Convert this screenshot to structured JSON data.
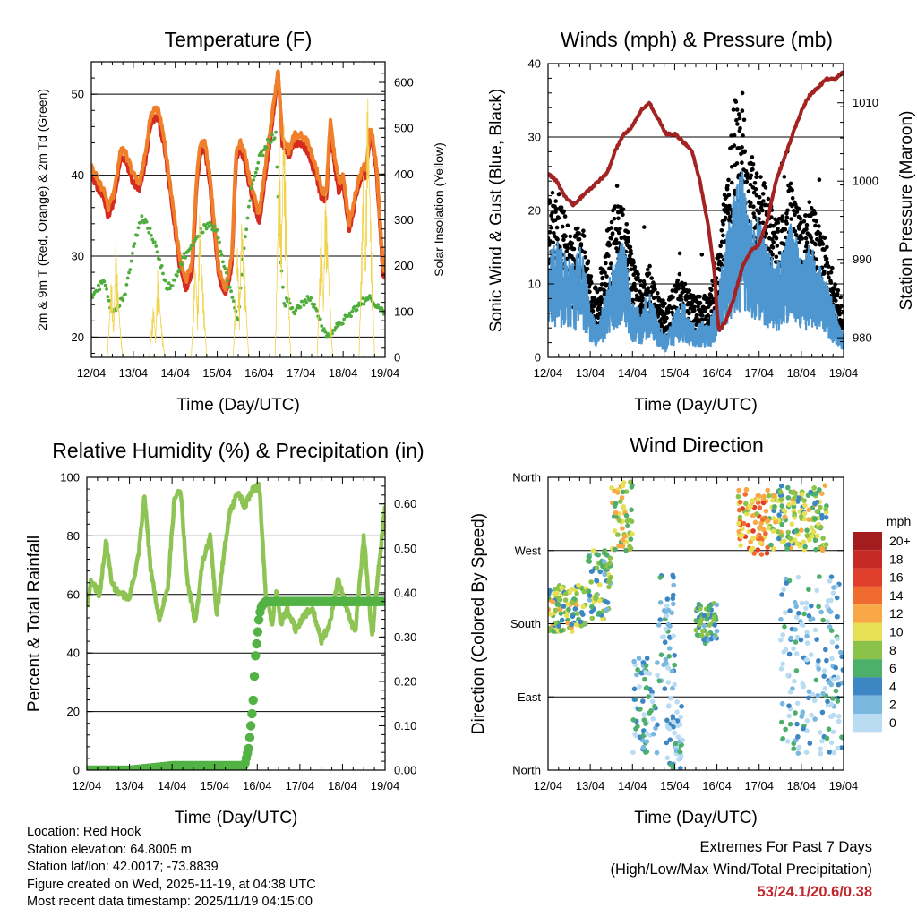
{
  "footer": {
    "location": "Location: Red Hook",
    "elevation": "Station elevation: 64.8005 m",
    "latlon": "Station lat/lon: 42.0017; -73.8839",
    "created": "Figure created on Wed, 2025-11-19, at 04:38 UTC",
    "recent": "Most recent data timestamp: 2025/11/19 04:15:00",
    "extremes_title": "Extremes For Past 7 Days",
    "extremes_sub": "(High/Low/Max Wind/Total Precipitation)",
    "extremes_values": "53/24.1/20.6/0.38"
  },
  "chart_data": [
    {
      "type": "line",
      "title": "Temperature (F)",
      "xlabel": "Time (Day/UTC)",
      "ylabel": "2m & 9m T (Red, Orange) & 2m Td (Green)",
      "y2label": "Solar Insolation (Yellow)",
      "xticks": [
        "12/04",
        "13/04",
        "14/04",
        "15/04",
        "16/04",
        "17/04",
        "18/04",
        "19/04"
      ],
      "ylim": [
        17.5,
        54
      ],
      "yticks": [
        20,
        30,
        40,
        50
      ],
      "y2lim": [
        0,
        645
      ],
      "y2ticks": [
        0,
        100,
        200,
        300,
        400,
        500,
        600
      ],
      "series": [
        {
          "name": "2m T",
          "color": "#d42a1f",
          "x": [
            0,
            0.1,
            0.3,
            0.4,
            0.55,
            0.7,
            0.8,
            1.0,
            1.15,
            1.3,
            1.4,
            1.5,
            1.6,
            1.75,
            1.9,
            2.0,
            2.1,
            2.25,
            2.4,
            2.5,
            2.6,
            2.7,
            2.8,
            2.95,
            3.05,
            3.2,
            3.35,
            3.45,
            3.55,
            3.65,
            3.75,
            3.9,
            4.0,
            4.1,
            4.2,
            4.3,
            4.4,
            4.45,
            4.55,
            4.7,
            4.85,
            5.0,
            5.15,
            5.35,
            5.5,
            5.6,
            5.7,
            5.8,
            5.9,
            6.0,
            6.15,
            6.3,
            6.45,
            6.55,
            6.65,
            6.7,
            6.8,
            6.9,
            6.95,
            7.0
          ],
          "y": [
            40,
            39,
            37,
            35,
            37,
            42,
            42,
            39,
            38,
            42,
            46,
            47,
            47,
            43,
            37,
            33,
            29,
            26,
            28,
            38,
            43,
            43,
            40,
            32,
            27,
            25,
            29,
            42,
            43,
            42,
            39,
            36,
            34,
            38,
            42,
            46,
            50,
            53,
            44,
            42,
            44,
            44,
            43,
            40,
            37,
            37,
            46,
            41,
            38,
            39,
            33,
            37,
            40,
            40,
            45,
            44,
            40,
            32,
            28,
            27
          ]
        },
        {
          "name": "9m T",
          "color": "#f07f2a",
          "x": [
            0,
            0.1,
            0.3,
            0.4,
            0.55,
            0.7,
            0.8,
            1.0,
            1.15,
            1.3,
            1.4,
            1.5,
            1.6,
            1.75,
            1.9,
            2.0,
            2.1,
            2.25,
            2.4,
            2.5,
            2.6,
            2.7,
            2.8,
            2.95,
            3.05,
            3.2,
            3.35,
            3.45,
            3.55,
            3.65,
            3.75,
            3.9,
            4.0,
            4.1,
            4.2,
            4.3,
            4.4,
            4.45,
            4.55,
            4.7,
            4.85,
            5.0,
            5.15,
            5.35,
            5.5,
            5.6,
            5.7,
            5.8,
            5.9,
            6.0,
            6.15,
            6.3,
            6.45,
            6.55,
            6.65,
            6.7,
            6.8,
            6.9,
            6.95,
            7.0
          ],
          "y": [
            41,
            40,
            38,
            36,
            38,
            43,
            43,
            40,
            39,
            43,
            47,
            48,
            48,
            44,
            38,
            34,
            30,
            27,
            29,
            39,
            44,
            44,
            41,
            33,
            28,
            26,
            30,
            43,
            44,
            43,
            40,
            37,
            35,
            39,
            43,
            47,
            51,
            53,
            45,
            43,
            45,
            45,
            44,
            41,
            38,
            38,
            47,
            42,
            39,
            40,
            34,
            38,
            41,
            41,
            46,
            45,
            41,
            33,
            29,
            28
          ]
        },
        {
          "name": "2m Td",
          "color": "#4fad3e",
          "x": [
            0,
            0.3,
            0.5,
            0.8,
            1.0,
            1.2,
            1.4,
            1.6,
            1.8,
            2.0,
            2.2,
            2.4,
            2.6,
            2.8,
            3.0,
            3.2,
            3.4,
            3.5,
            3.6,
            3.8,
            4.0,
            4.2,
            4.4,
            4.5,
            4.6,
            4.7,
            4.8,
            5.0,
            5.2,
            5.4,
            5.6,
            5.8,
            6.0,
            6.2,
            6.4,
            6.6,
            6.8,
            7.0
          ],
          "y": [
            25,
            27,
            23,
            25,
            31,
            35,
            33,
            30,
            26,
            27,
            30,
            31,
            33,
            34,
            33,
            28,
            24,
            22,
            29,
            38,
            42,
            44,
            45,
            30,
            24,
            25,
            23,
            24,
            25,
            23,
            20,
            21,
            22,
            23,
            24,
            25,
            24,
            23
          ]
        },
        {
          "name": "Solar Insolation",
          "color": "#f2d34c",
          "axis": "y2",
          "x": [
            0,
            0.38,
            0.48,
            0.53,
            0.58,
            0.68,
            0.75,
            1.38,
            1.48,
            1.53,
            1.58,
            1.68,
            1.75,
            2.38,
            2.48,
            2.53,
            2.58,
            2.68,
            2.75,
            3.38,
            3.48,
            3.53,
            3.58,
            3.68,
            3.75,
            4.38,
            4.48,
            4.53,
            4.58,
            4.68,
            4.75,
            5.38,
            5.48,
            5.53,
            5.58,
            5.68,
            5.75,
            6.38,
            6.48,
            6.53,
            6.58,
            6.68,
            6.75,
            7.0
          ],
          "y": [
            0,
            0,
            180,
            60,
            250,
            80,
            0,
            0,
            120,
            40,
            190,
            60,
            0,
            0,
            230,
            90,
            320,
            120,
            0,
            0,
            260,
            110,
            330,
            140,
            0,
            0,
            480,
            250,
            560,
            210,
            0,
            0,
            300,
            120,
            380,
            150,
            0,
            0,
            420,
            200,
            620,
            230,
            0,
            0
          ]
        }
      ]
    },
    {
      "type": "line",
      "title": "Winds (mph) & Pressure (mb)",
      "xlabel": "Time (Day/UTC)",
      "ylabel": "Sonic Wind & Gust (Blue, Black)",
      "y2label": "Station Pressure (Maroon)",
      "xticks": [
        "12/04",
        "13/04",
        "14/04",
        "15/04",
        "16/04",
        "17/04",
        "18/04",
        "19/04"
      ],
      "ylim": [
        0,
        40
      ],
      "yticks": [
        0,
        10,
        20,
        30,
        40
      ],
      "y2lim": [
        977.5,
        1015
      ],
      "y2ticks": [
        980,
        990,
        1000,
        1010
      ],
      "series": [
        {
          "name": "Sonic Wind",
          "color": "#4d96cf",
          "x": [
            0,
            0.2,
            0.4,
            0.6,
            0.8,
            1.0,
            1.2,
            1.4,
            1.6,
            1.8,
            2.0,
            2.2,
            2.4,
            2.6,
            2.8,
            3.0,
            3.2,
            3.4,
            3.6,
            3.8,
            4.0,
            4.2,
            4.4,
            4.6,
            4.8,
            5.0,
            5.2,
            5.4,
            5.6,
            5.8,
            6.0,
            6.2,
            6.4,
            6.6,
            6.8,
            7.0
          ],
          "y": [
            9,
            10,
            9,
            8,
            10,
            4,
            3,
            6,
            9,
            10,
            5,
            4,
            6,
            3,
            2,
            4,
            5,
            3,
            3,
            3,
            5,
            10,
            14,
            16,
            12,
            12,
            10,
            8,
            10,
            12,
            8,
            10,
            8,
            7,
            4,
            2
          ]
        },
        {
          "name": "Gust",
          "color": "#000000",
          "x": [
            0,
            0.2,
            0.4,
            0.6,
            0.8,
            1.0,
            1.2,
            1.4,
            1.6,
            1.8,
            2.0,
            2.2,
            2.4,
            2.6,
            2.8,
            3.0,
            3.2,
            3.4,
            3.6,
            3.8,
            4.0,
            4.2,
            4.4,
            4.6,
            4.8,
            5.0,
            5.2,
            5.4,
            5.6,
            5.8,
            6.0,
            6.2,
            6.4,
            6.6,
            6.8,
            7.0
          ],
          "y": [
            15,
            16,
            14,
            12,
            13,
            8,
            6,
            12,
            15,
            14,
            10,
            7,
            9,
            6,
            5,
            7,
            8,
            6,
            6,
            6,
            9,
            16,
            25,
            24,
            19,
            18,
            16,
            13,
            15,
            17,
            13,
            15,
            13,
            11,
            7,
            5
          ]
        },
        {
          "name": "Station Pressure",
          "color": "#a32222",
          "axis": "y2",
          "x": [
            0,
            0.2,
            0.4,
            0.6,
            0.8,
            1.0,
            1.2,
            1.4,
            1.6,
            1.8,
            2.0,
            2.2,
            2.4,
            2.6,
            2.8,
            3.0,
            3.2,
            3.4,
            3.6,
            3.8,
            3.95,
            4.0,
            4.05,
            4.2,
            4.4,
            4.6,
            4.8,
            5.0,
            5.2,
            5.4,
            5.6,
            5.8,
            6.0,
            6.2,
            6.4,
            6.6,
            6.8,
            7.0
          ],
          "y": [
            1001,
            1000,
            998,
            997,
            998,
            999,
            1000,
            1001,
            1004,
            1006,
            1007,
            1009,
            1010,
            1008,
            1006,
            1006,
            1005,
            1004,
            1000,
            994,
            988,
            983,
            981,
            982,
            985,
            989,
            991,
            992,
            995,
            1000,
            1003,
            1006,
            1009,
            1011,
            1012,
            1013,
            1013,
            1014
          ]
        }
      ]
    },
    {
      "type": "line",
      "title": "Relative Humidity (%) & Precipitation (in)",
      "xlabel": "Time (Day/UTC)",
      "ylabel": "Percent & Total Rainfall",
      "xticks": [
        "12/04",
        "13/04",
        "14/04",
        "15/04",
        "16/04",
        "17/04",
        "18/04",
        "19/04"
      ],
      "ylim": [
        0,
        100
      ],
      "yticks": [
        0,
        20,
        40,
        60,
        80,
        100
      ],
      "y2lim": [
        0,
        0.66
      ],
      "y2ticks": [
        "0.00",
        "0.10",
        "0.20",
        "0.30",
        "0.40",
        "0.50",
        "0.60"
      ],
      "series": [
        {
          "name": "Relative Humidity",
          "color": "#8dc453",
          "x": [
            0,
            0.1,
            0.3,
            0.45,
            0.6,
            0.8,
            1.0,
            1.2,
            1.35,
            1.5,
            1.7,
            1.9,
            2.05,
            2.2,
            2.35,
            2.55,
            2.7,
            2.9,
            3.05,
            3.2,
            3.35,
            3.55,
            3.7,
            3.9,
            4.05,
            4.2,
            4.35,
            4.45,
            4.55,
            4.7,
            4.9,
            5.1,
            5.3,
            5.5,
            5.7,
            5.9,
            6.1,
            6.3,
            6.5,
            6.7,
            6.8,
            7.0
          ],
          "y": [
            56,
            65,
            60,
            78,
            63,
            60,
            59,
            72,
            94,
            68,
            52,
            62,
            92,
            96,
            65,
            50,
            70,
            80,
            53,
            72,
            88,
            95,
            90,
            96,
            97,
            60,
            50,
            62,
            50,
            55,
            48,
            53,
            55,
            44,
            50,
            65,
            55,
            47,
            80,
            45,
            62,
            90
          ]
        },
        {
          "name": "Total Precipitation",
          "color": "#52b244",
          "axis": "y2",
          "x": [
            0,
            1.0,
            2.0,
            3.0,
            3.7,
            3.8,
            3.9,
            3.95,
            4.0,
            4.05,
            4.1,
            4.2,
            4.5,
            5.0,
            6.0,
            7.0
          ],
          "y": [
            0,
            0,
            0.01,
            0.01,
            0.01,
            0.05,
            0.15,
            0.25,
            0.3,
            0.35,
            0.37,
            0.38,
            0.38,
            0.38,
            0.38,
            0.38
          ]
        }
      ]
    },
    {
      "type": "scatter",
      "title": "Wind Direction",
      "xlabel": "Time (Day/UTC)",
      "ylabel": "Direction (Colored By Speed)",
      "xticks": [
        "12/04",
        "13/04",
        "14/04",
        "15/04",
        "16/04",
        "17/04",
        "18/04",
        "19/04"
      ],
      "yticks": [
        "North",
        "East",
        "South",
        "West",
        "North"
      ],
      "ylim": [
        0,
        360
      ],
      "legend": {
        "title": "mph",
        "position": "right",
        "labels": [
          "20+",
          "18",
          "16",
          "14",
          "12",
          "10",
          "8",
          "6",
          "4",
          "2",
          "0"
        ],
        "colors": [
          "#a31d1f",
          "#c52a25",
          "#e0402b",
          "#f06b30",
          "#f9a848",
          "#e7e055",
          "#8bc34a",
          "#4caf6a",
          "#3d86c4",
          "#7ab8e0",
          "#b9dcf2"
        ]
      },
      "clusters": [
        {
          "t0": 0.0,
          "t1": 0.9,
          "d0": 170,
          "d1": 230,
          "speed": 9
        },
        {
          "t0": 0.9,
          "t1": 1.5,
          "d0": 185,
          "d1": 270,
          "speed": 7
        },
        {
          "t0": 1.5,
          "t1": 2.0,
          "d0": 270,
          "d1": 355,
          "speed": 10
        },
        {
          "t0": 2.0,
          "t1": 2.6,
          "d0": 20,
          "d1": 140,
          "speed": 4
        },
        {
          "t0": 2.6,
          "t1": 3.0,
          "d0": 100,
          "d1": 240,
          "speed": 3
        },
        {
          "t0": 2.8,
          "t1": 3.2,
          "d0": 0,
          "d1": 90,
          "speed": 3
        },
        {
          "t0": 3.5,
          "t1": 4.0,
          "d0": 155,
          "d1": 205,
          "speed": 6
        },
        {
          "t0": 4.5,
          "t1": 5.2,
          "d0": 265,
          "d1": 345,
          "speed": 13
        },
        {
          "t0": 5.2,
          "t1": 6.6,
          "d0": 270,
          "d1": 350,
          "speed": 9
        },
        {
          "t0": 5.5,
          "t1": 7.0,
          "d0": 20,
          "d1": 240,
          "speed": 3
        }
      ]
    }
  ]
}
